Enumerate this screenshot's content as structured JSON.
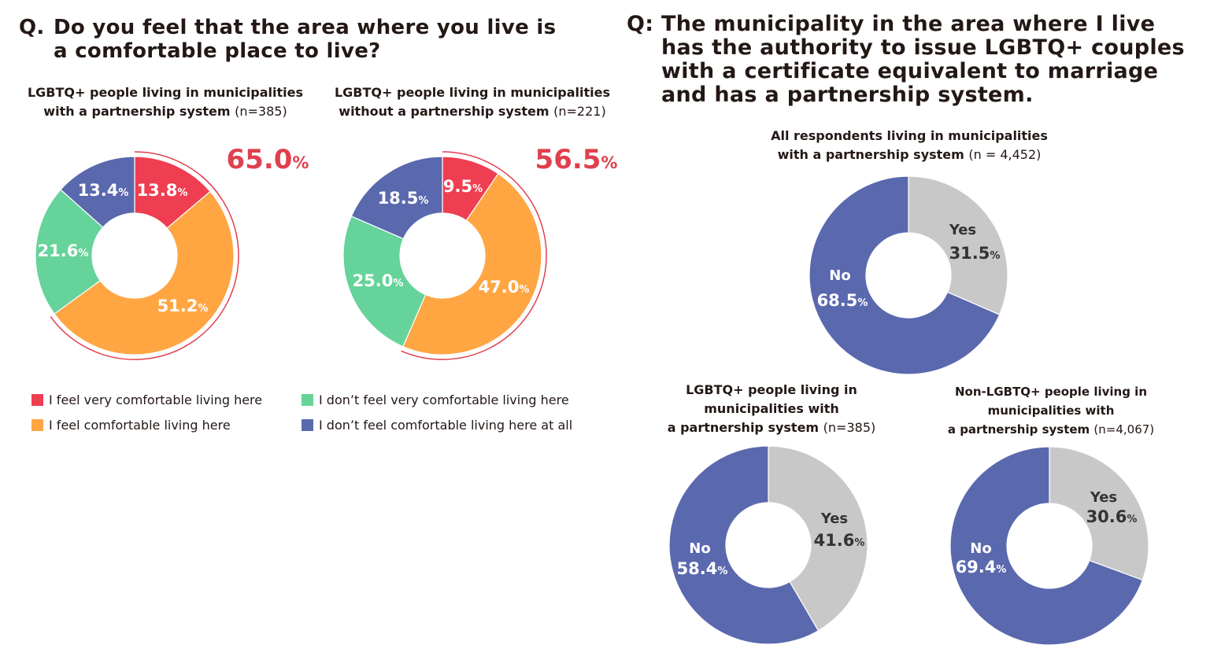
{
  "left_question": {
    "prefix": "Q.",
    "lines": [
      "Do you feel that the area where you live is",
      "a comfortable place to live?"
    ]
  },
  "right_question": {
    "prefix": "Q:",
    "lines": [
      "The municipality in the area where I live",
      "has the authority to issue LGBTQ+ couples",
      "with a certificate equivalent to marriage",
      "and has a partnership system."
    ]
  },
  "colors": {
    "very_comfortable": "#EF3E51",
    "comfortable": "#FFA643",
    "not_very_comfortable": "#66D39A",
    "not_at_all": "#5A68AE",
    "yes": "#C8C8C8",
    "no": "#5A68AE",
    "highlight": "#E0404E"
  },
  "legend": [
    {
      "key": "very_comfortable",
      "label": "I feel very comfortable living here"
    },
    {
      "key": "not_very_comfortable",
      "label": "I don’t feel very comfortable living here"
    },
    {
      "key": "comfortable",
      "label": "I feel comfortable living here"
    },
    {
      "key": "not_at_all",
      "label": "I don’t feel comfortable living here at all"
    }
  ],
  "chart_data": [
    {
      "type": "pie",
      "title_lines": [
        "LGBTQ+ people living in municipalities",
        "with a partnership system"
      ],
      "n": "(n=385)",
      "highlight_total": "65.0",
      "slices": [
        {
          "key": "very_comfortable",
          "value": 13.8,
          "label": "13.8"
        },
        {
          "key": "comfortable",
          "value": 51.2,
          "label": "51.2"
        },
        {
          "key": "not_very_comfortable",
          "value": 21.6,
          "label": "21.6"
        },
        {
          "key": "not_at_all",
          "value": 13.4,
          "label": "13.4"
        }
      ]
    },
    {
      "type": "pie",
      "title_lines": [
        "LGBTQ+ people living in municipalities",
        "without a partnership system"
      ],
      "n": "(n=221)",
      "highlight_total": "56.5",
      "slices": [
        {
          "key": "very_comfortable",
          "value": 9.5,
          "label": "9.5"
        },
        {
          "key": "comfortable",
          "value": 47.0,
          "label": "47.0"
        },
        {
          "key": "not_very_comfortable",
          "value": 25.0,
          "label": "25.0"
        },
        {
          "key": "not_at_all",
          "value": 18.5,
          "label": "18.5"
        }
      ]
    },
    {
      "type": "pie",
      "title_lines": [
        "All respondents living in municipalities",
        "with a partnership system"
      ],
      "n": "(n = 4,452)",
      "slices": [
        {
          "key": "yes",
          "name": "Yes",
          "value": 31.5,
          "label": "31.5"
        },
        {
          "key": "no",
          "name": "No",
          "value": 68.5,
          "label": "68.5"
        }
      ]
    },
    {
      "type": "pie",
      "title_lines": [
        "LGBTQ+ people living in",
        "municipalities with",
        "a partnership system"
      ],
      "n": "(n=385)",
      "slices": [
        {
          "key": "yes",
          "name": "Yes",
          "value": 41.6,
          "label": "41.6"
        },
        {
          "key": "no",
          "name": "No",
          "value": 58.4,
          "label": "58.4"
        }
      ]
    },
    {
      "type": "pie",
      "title_lines": [
        "Non-LGBTQ+ people living in",
        "municipalities with",
        "a partnership system"
      ],
      "n": "(n=4,067)",
      "slices": [
        {
          "key": "yes",
          "name": "Yes",
          "value": 30.6,
          "label": "30.6"
        },
        {
          "key": "no",
          "name": "No",
          "value": 69.4,
          "label": "69.4"
        }
      ]
    }
  ],
  "percent_sign": "%"
}
